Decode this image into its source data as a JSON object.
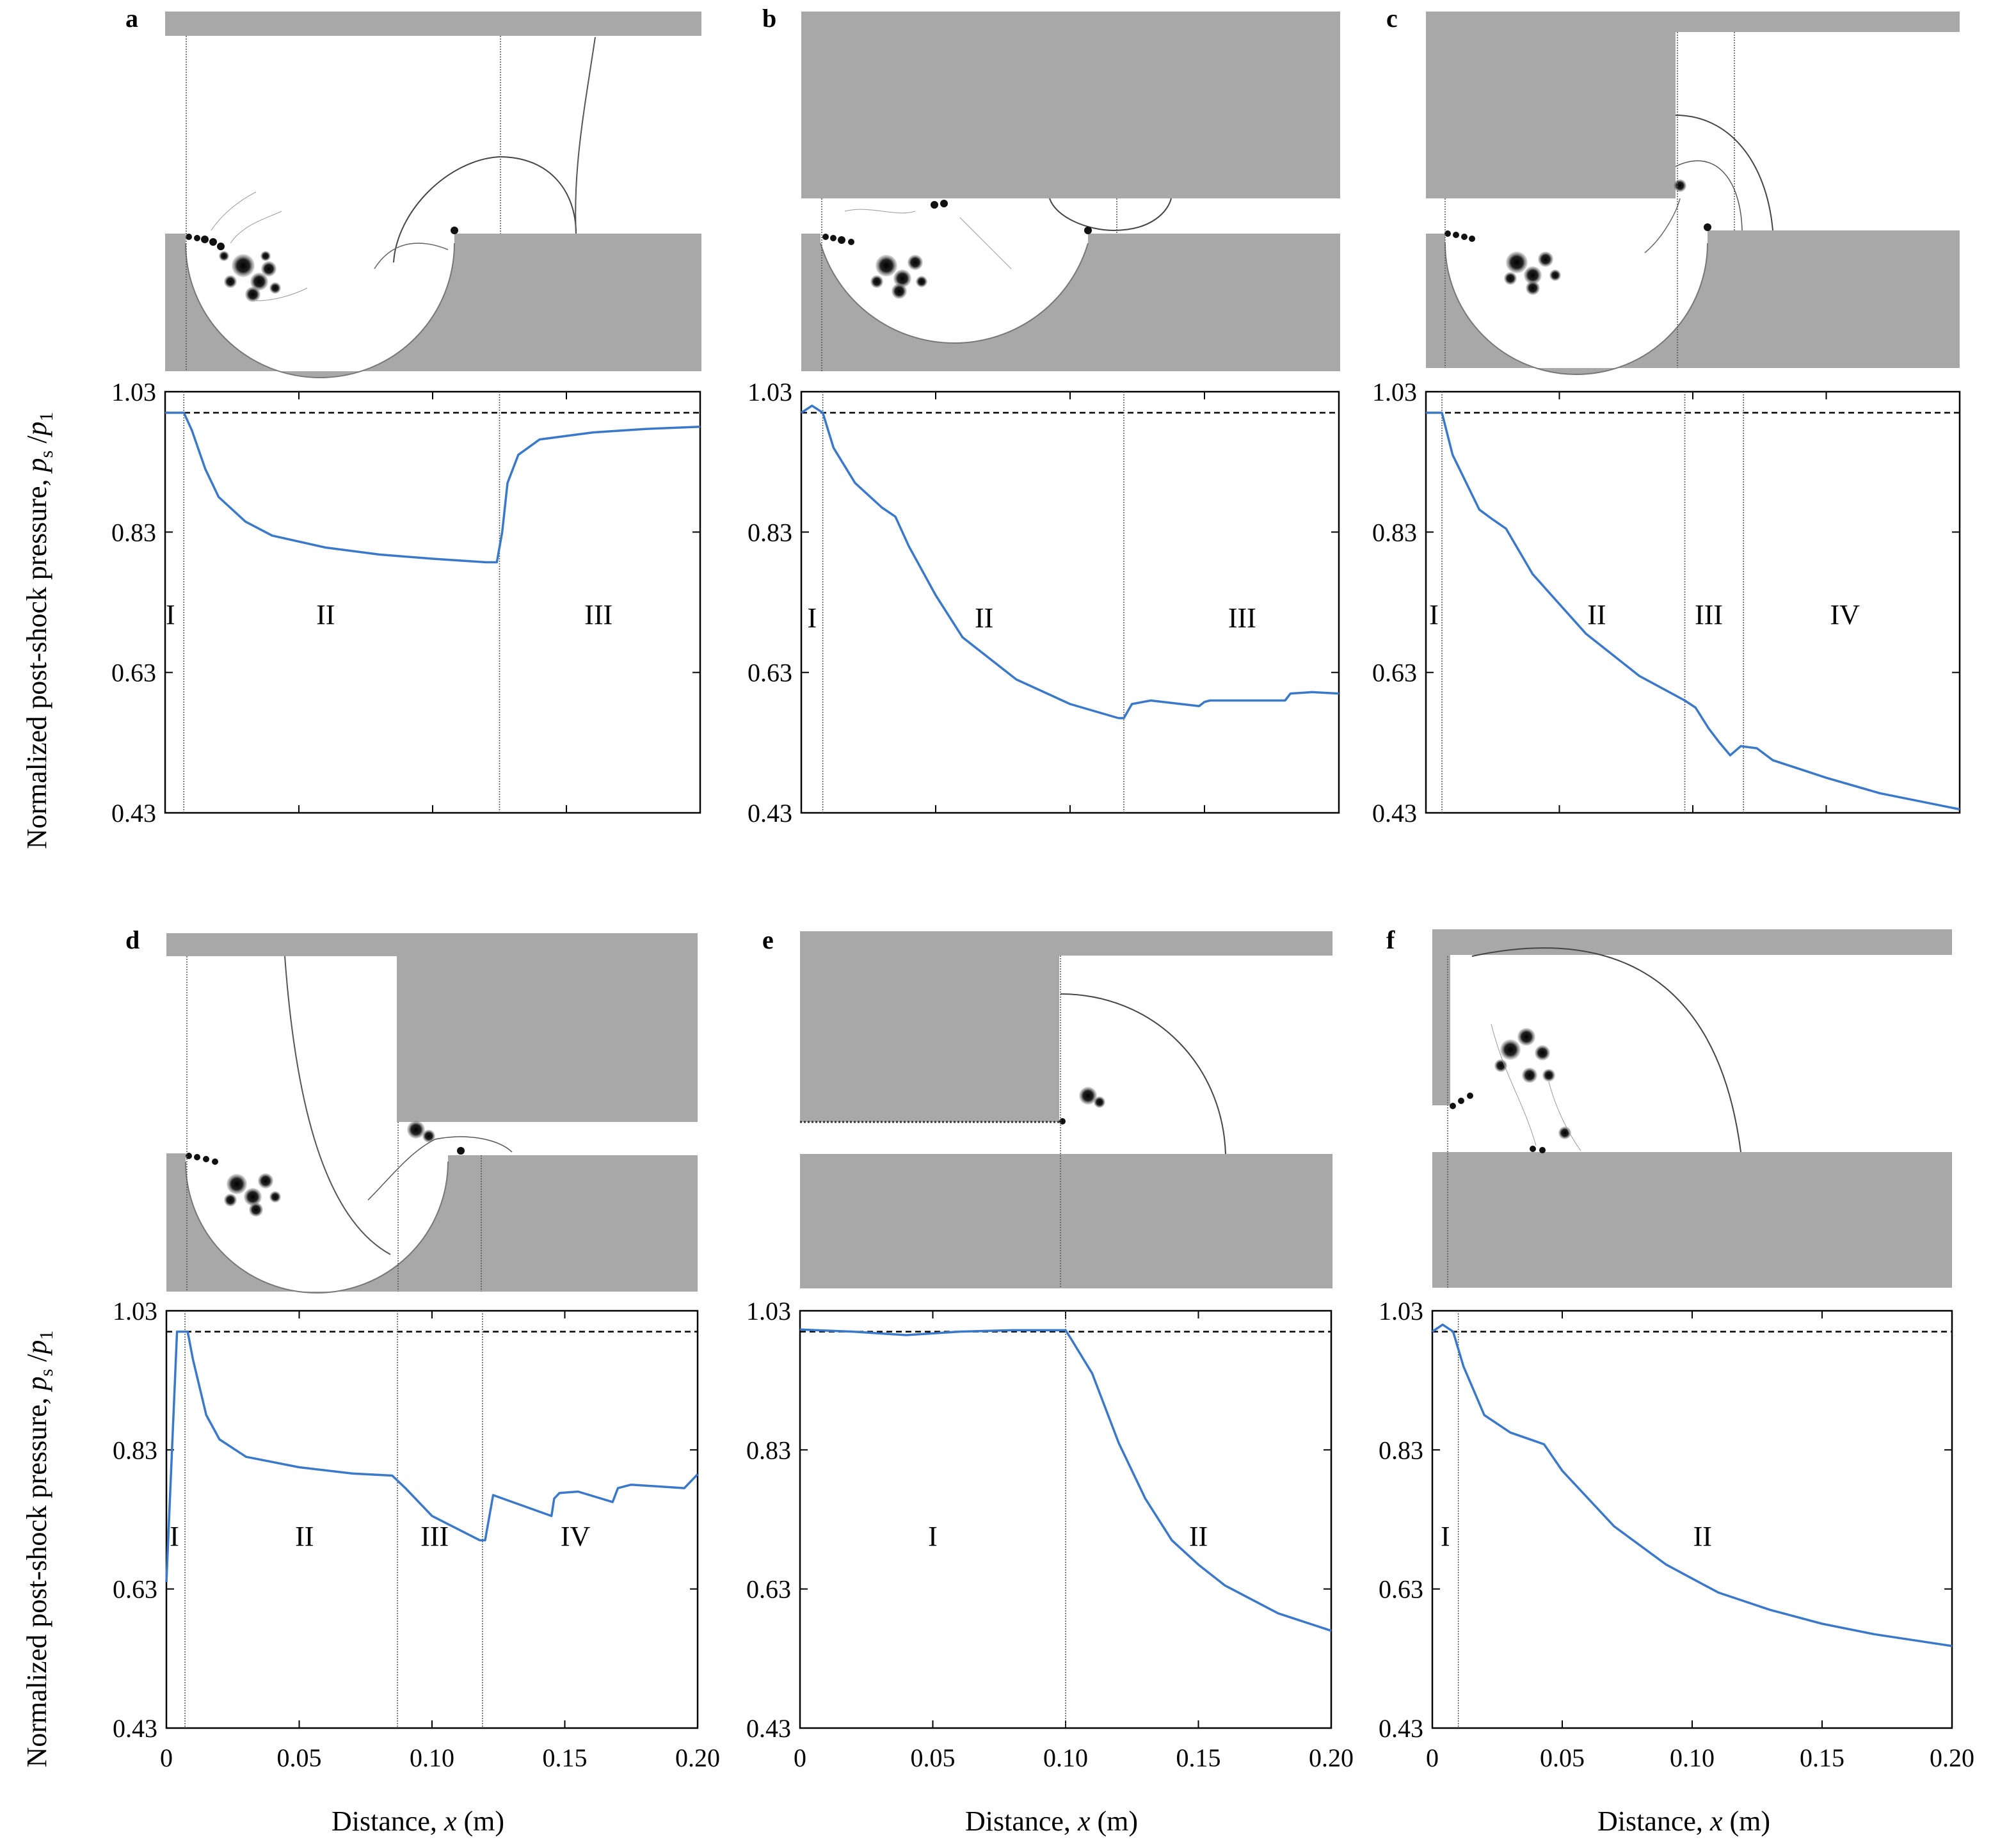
{
  "figure": {
    "y_axis_label": "Normalized post-shock pressure, ",
    "y_axis_var": "p",
    "y_axis_var_sub": "s",
    "y_axis_sep": " /",
    "y_axis_den": "p",
    "y_axis_den_sub": "1",
    "x_axis_label": "Distance, ",
    "x_axis_var": "x",
    "x_axis_unit": " (m)",
    "colors": {
      "solid": "#a8a8a8",
      "curve": "#3a78c9",
      "reference_line": "#000000",
      "divider": "#555555",
      "vortex": "#111111"
    }
  },
  "chart_data": [
    {
      "panel": "a",
      "type": "line",
      "xlim": [
        0,
        0.2
      ],
      "ylim": [
        0.43,
        1.03
      ],
      "yticks": [
        "1.03",
        "0.83",
        "0.63",
        "0.43"
      ],
      "xticks": [
        "0",
        "0.05",
        "0.10",
        "0.15",
        "0.20"
      ],
      "reference_y": 1.0,
      "dividers_x": [
        0.007,
        0.125
      ],
      "regions": [
        {
          "label": "I",
          "x": 0.002
        },
        {
          "label": "II",
          "x": 0.06
        },
        {
          "label": "III",
          "x": 0.162
        }
      ],
      "x": [
        0,
        0.007,
        0.01,
        0.015,
        0.02,
        0.03,
        0.04,
        0.06,
        0.08,
        0.1,
        0.12,
        0.124,
        0.126,
        0.128,
        0.132,
        0.14,
        0.16,
        0.18,
        0.2
      ],
      "y": [
        1.0,
        1.0,
        0.975,
        0.92,
        0.88,
        0.845,
        0.825,
        0.808,
        0.798,
        0.792,
        0.787,
        0.787,
        0.83,
        0.9,
        0.94,
        0.962,
        0.972,
        0.977,
        0.98
      ]
    },
    {
      "panel": "b",
      "type": "line",
      "xlim": [
        0,
        0.2
      ],
      "ylim": [
        0.43,
        1.03
      ],
      "yticks": [
        "1.03",
        "0.83",
        "0.63",
        "0.43"
      ],
      "xticks": [
        "0",
        "0.05",
        "0.10",
        "0.15",
        "0.20"
      ],
      "reference_y": 1.0,
      "dividers_x": [
        0.008,
        0.12
      ],
      "regions": [
        {
          "label": "I",
          "x": 0.004
        },
        {
          "label": "II",
          "x": 0.068
        },
        {
          "label": "III",
          "x": 0.164
        }
      ],
      "x": [
        0,
        0.004,
        0.008,
        0.012,
        0.02,
        0.03,
        0.035,
        0.04,
        0.05,
        0.06,
        0.08,
        0.1,
        0.118,
        0.12,
        0.123,
        0.13,
        0.148,
        0.15,
        0.152,
        0.17,
        0.18,
        0.182,
        0.19,
        0.2
      ],
      "y": [
        1.0,
        1.01,
        1.0,
        0.95,
        0.9,
        0.865,
        0.852,
        0.81,
        0.74,
        0.68,
        0.62,
        0.585,
        0.565,
        0.565,
        0.585,
        0.59,
        0.582,
        0.588,
        0.59,
        0.59,
        0.59,
        0.6,
        0.602,
        0.6
      ]
    },
    {
      "panel": "c",
      "type": "line",
      "xlim": [
        0,
        0.2
      ],
      "ylim": [
        0.43,
        1.03
      ],
      "yticks": [
        "1.03",
        "0.83",
        "0.63",
        "0.43"
      ],
      "xticks": [
        "0",
        "0.05",
        "0.10",
        "0.15",
        "0.20"
      ],
      "reference_y": 1.0,
      "dividers_x": [
        0.006,
        0.097,
        0.119
      ],
      "regions": [
        {
          "label": "I",
          "x": 0.003
        },
        {
          "label": "II",
          "x": 0.064
        },
        {
          "label": "III",
          "x": 0.106
        },
        {
          "label": "IV",
          "x": 0.157
        }
      ],
      "x": [
        0,
        0.006,
        0.01,
        0.02,
        0.025,
        0.03,
        0.04,
        0.06,
        0.08,
        0.097,
        0.101,
        0.106,
        0.11,
        0.114,
        0.118,
        0.124,
        0.13,
        0.15,
        0.17,
        0.2
      ],
      "y": [
        1.0,
        1.0,
        0.94,
        0.862,
        0.848,
        0.835,
        0.77,
        0.685,
        0.625,
        0.59,
        0.58,
        0.55,
        0.53,
        0.512,
        0.525,
        0.522,
        0.505,
        0.48,
        0.458,
        0.435
      ]
    },
    {
      "panel": "d",
      "type": "line",
      "xlim": [
        0,
        0.2
      ],
      "ylim": [
        0.43,
        1.03
      ],
      "yticks": [
        "1.03",
        "0.83",
        "0.63",
        "0.43"
      ],
      "xticks": [
        "0",
        "0.05",
        "0.10",
        "0.15",
        "0.20"
      ],
      "reference_y": 1.0,
      "dividers_x": [
        0.007,
        0.087,
        0.119
      ],
      "regions": [
        {
          "label": "I",
          "x": 0.003
        },
        {
          "label": "II",
          "x": 0.052
        },
        {
          "label": "III",
          "x": 0.101
        },
        {
          "label": "IV",
          "x": 0.154
        }
      ],
      "x": [
        0,
        0.004,
        0.008,
        0.01,
        0.015,
        0.02,
        0.03,
        0.05,
        0.07,
        0.085,
        0.09,
        0.1,
        0.118,
        0.12,
        0.123,
        0.145,
        0.146,
        0.148,
        0.155,
        0.168,
        0.17,
        0.175,
        0.195,
        0.2
      ],
      "y": [
        0.64,
        1.0,
        1.0,
        0.96,
        0.88,
        0.845,
        0.82,
        0.805,
        0.796,
        0.793,
        0.775,
        0.735,
        0.7,
        0.7,
        0.765,
        0.735,
        0.76,
        0.768,
        0.77,
        0.755,
        0.775,
        0.78,
        0.775,
        0.795
      ]
    },
    {
      "panel": "e",
      "type": "line",
      "xlim": [
        0,
        0.2
      ],
      "ylim": [
        0.43,
        1.03
      ],
      "yticks": [
        "1.03",
        "0.83",
        "0.63",
        "0.43"
      ],
      "xticks": [
        "0",
        "0.05",
        "0.10",
        "0.15",
        "0.20"
      ],
      "reference_y": 1.0,
      "dividers_x": [
        0.1
      ],
      "regions": [
        {
          "label": "I",
          "x": 0.05
        },
        {
          "label": "II",
          "x": 0.15
        }
      ],
      "x": [
        0,
        0.02,
        0.04,
        0.06,
        0.08,
        0.1,
        0.102,
        0.11,
        0.12,
        0.13,
        0.14,
        0.15,
        0.16,
        0.18,
        0.2
      ],
      "y": [
        1.003,
        1.0,
        0.995,
        1.0,
        1.002,
        1.002,
        0.99,
        0.94,
        0.84,
        0.76,
        0.7,
        0.665,
        0.635,
        0.595,
        0.57
      ]
    },
    {
      "panel": "f",
      "type": "line",
      "xlim": [
        0,
        0.2
      ],
      "ylim": [
        0.43,
        1.03
      ],
      "yticks": [
        "1.03",
        "0.83",
        "0.63",
        "0.43"
      ],
      "xticks": [
        "0",
        "0.05",
        "0.10",
        "0.15",
        "0.20"
      ],
      "reference_y": 1.0,
      "dividers_x": [
        0.01
      ],
      "regions": [
        {
          "label": "I",
          "x": 0.005
        },
        {
          "label": "II",
          "x": 0.104
        }
      ],
      "x": [
        0,
        0.004,
        0.008,
        0.012,
        0.02,
        0.03,
        0.04,
        0.043,
        0.05,
        0.07,
        0.09,
        0.11,
        0.13,
        0.15,
        0.17,
        0.2
      ],
      "y": [
        1.0,
        1.01,
        1.0,
        0.95,
        0.88,
        0.855,
        0.842,
        0.838,
        0.8,
        0.72,
        0.665,
        0.625,
        0.6,
        0.58,
        0.565,
        0.548
      ]
    }
  ]
}
